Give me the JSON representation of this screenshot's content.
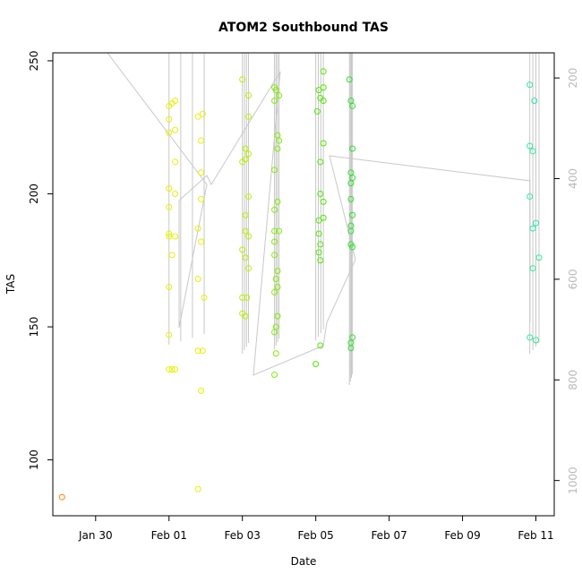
{
  "chart_data": {
    "type": "scatter",
    "title": "ATOM2 Southbound TAS",
    "xlabel": "Date",
    "ylabel": "TAS",
    "xlim": [
      "2025-01-28T20:00",
      "2025-02-11T12:00"
    ],
    "ylim": [
      79,
      253
    ],
    "x_ticks": [
      "Jan 30",
      "Feb 01",
      "Feb 03",
      "Feb 05",
      "Feb 07",
      "Feb 09",
      "Feb 11"
    ],
    "y_ticks": [
      100,
      150,
      200,
      250
    ],
    "secondary_axis": {
      "side": "right",
      "ticks": [
        200,
        400,
        600,
        800,
        1000
      ],
      "ylim": [
        1070,
        150
      ],
      "label_color": "#b8b8b8"
    },
    "marker": "open-circle",
    "grid": false,
    "series": [
      {
        "color": "#ff8000",
        "points": [
          [
            "2025-01-29T02:00",
            86
          ]
        ]
      },
      {
        "color": "#e8f000",
        "points": [
          [
            "2025-02-01T00:00",
            134
          ],
          [
            "2025-02-01T02:00",
            134
          ],
          [
            "2025-02-01T04:00",
            134
          ],
          [
            "2025-02-01T00:00",
            147
          ],
          [
            "2025-02-01T00:00",
            165
          ],
          [
            "2025-02-01T02:00",
            177
          ],
          [
            "2025-02-01T00:00",
            184
          ],
          [
            "2025-02-01T04:00",
            184
          ],
          [
            "2025-02-01T00:00",
            185
          ],
          [
            "2025-02-01T00:00",
            195
          ],
          [
            "2025-02-01T04:00",
            200
          ],
          [
            "2025-02-01T00:00",
            202
          ],
          [
            "2025-02-01T04:00",
            212
          ],
          [
            "2025-02-01T00:00",
            223
          ],
          [
            "2025-02-01T04:00",
            224
          ],
          [
            "2025-02-01T00:00",
            228
          ],
          [
            "2025-02-01T00:00",
            233
          ],
          [
            "2025-02-01T02:00",
            234
          ],
          [
            "2025-02-01T04:00",
            235
          ],
          [
            "2025-02-01T19:00",
            89
          ],
          [
            "2025-02-01T21:00",
            126
          ],
          [
            "2025-02-01T19:00",
            141
          ],
          [
            "2025-02-01T22:00",
            141
          ],
          [
            "2025-02-01T23:00",
            161
          ],
          [
            "2025-02-01T19:00",
            168
          ],
          [
            "2025-02-01T21:00",
            182
          ],
          [
            "2025-02-01T19:00",
            187
          ],
          [
            "2025-02-01T21:00",
            198
          ],
          [
            "2025-02-01T21:00",
            208
          ],
          [
            "2025-02-01T21:00",
            220
          ],
          [
            "2025-02-01T19:00",
            229
          ],
          [
            "2025-02-01T22:00",
            230
          ]
        ]
      },
      {
        "color": "#b8f000",
        "points": [
          [
            "2025-02-03T00:00",
            155
          ],
          [
            "2025-02-03T02:00",
            154
          ],
          [
            "2025-02-03T00:00",
            161
          ],
          [
            "2025-02-03T03:00",
            161
          ],
          [
            "2025-02-03T04:00",
            172
          ],
          [
            "2025-02-03T02:00",
            176
          ],
          [
            "2025-02-03T00:00",
            179
          ],
          [
            "2025-02-03T04:00",
            184
          ],
          [
            "2025-02-03T02:00",
            186
          ],
          [
            "2025-02-03T02:00",
            192
          ],
          [
            "2025-02-03T04:00",
            199
          ],
          [
            "2025-02-03T00:00",
            212
          ],
          [
            "2025-02-03T02:00",
            213
          ],
          [
            "2025-02-03T04:00",
            215
          ],
          [
            "2025-02-03T02:00",
            217
          ],
          [
            "2025-02-03T04:00",
            229
          ],
          [
            "2025-02-03T04:00",
            237
          ],
          [
            "2025-02-03T00:00",
            243
          ]
        ]
      },
      {
        "color": "#80ee00",
        "points": [
          [
            "2025-02-03T21:00",
            132
          ],
          [
            "2025-02-03T22:00",
            140
          ],
          [
            "2025-02-03T21:00",
            148
          ],
          [
            "2025-02-03T22:00",
            150
          ],
          [
            "2025-02-03T23:00",
            154
          ],
          [
            "2025-02-03T21:00",
            163
          ],
          [
            "2025-02-03T23:00",
            165
          ],
          [
            "2025-02-03T22:00",
            168
          ],
          [
            "2025-02-03T23:00",
            171
          ],
          [
            "2025-02-03T21:00",
            177
          ],
          [
            "2025-02-03T21:00",
            182
          ],
          [
            "2025-02-03T21:00",
            186
          ],
          [
            "2025-02-04T00:00",
            186
          ],
          [
            "2025-02-03T21:00",
            194
          ],
          [
            "2025-02-03T23:00",
            197
          ],
          [
            "2025-02-03T21:00",
            209
          ],
          [
            "2025-02-03T23:00",
            217
          ],
          [
            "2025-02-04T00:00",
            220
          ],
          [
            "2025-02-03T23:00",
            222
          ],
          [
            "2025-02-03T21:00",
            235
          ],
          [
            "2025-02-04T00:00",
            237
          ],
          [
            "2025-02-03T22:00",
            239
          ],
          [
            "2025-02-03T21:00",
            240
          ]
        ]
      },
      {
        "color": "#50e800",
        "points": [
          [
            "2025-02-05T00:00",
            136
          ],
          [
            "2025-02-05T03:00",
            143
          ],
          [
            "2025-02-05T03:00",
            175
          ],
          [
            "2025-02-05T02:00",
            178
          ],
          [
            "2025-02-05T03:00",
            181
          ],
          [
            "2025-02-05T02:00",
            185
          ],
          [
            "2025-02-05T02:00",
            190
          ],
          [
            "2025-02-05T05:00",
            191
          ],
          [
            "2025-02-05T05:00",
            197
          ],
          [
            "2025-02-05T03:00",
            200
          ],
          [
            "2025-02-05T03:00",
            212
          ],
          [
            "2025-02-05T05:00",
            219
          ],
          [
            "2025-02-05T01:00",
            231
          ],
          [
            "2025-02-05T05:00",
            235
          ],
          [
            "2025-02-05T03:00",
            236
          ],
          [
            "2025-02-05T02:00",
            239
          ],
          [
            "2025-02-05T05:00",
            240
          ],
          [
            "2025-02-05T05:00",
            246
          ]
        ]
      },
      {
        "color": "#30e030",
        "points": [
          [
            "2025-02-05T23:00",
            142
          ],
          [
            "2025-02-05T23:00",
            144
          ],
          [
            "2025-02-06T00:00",
            146
          ],
          [
            "2025-02-06T00:00",
            180
          ],
          [
            "2025-02-05T23:00",
            181
          ],
          [
            "2025-02-05T23:00",
            186
          ],
          [
            "2025-02-05T23:00",
            188
          ],
          [
            "2025-02-06T00:00",
            192
          ],
          [
            "2025-02-05T23:00",
            198
          ],
          [
            "2025-02-05T23:00",
            204
          ],
          [
            "2025-02-06T00:00",
            206
          ],
          [
            "2025-02-05T23:00",
            208
          ],
          [
            "2025-02-06T00:00",
            217
          ],
          [
            "2025-02-06T00:00",
            233
          ],
          [
            "2025-02-05T23:00",
            235
          ],
          [
            "2025-02-05T22:00",
            243
          ]
        ]
      },
      {
        "color": "#30e8a0",
        "points": [
          [
            "2025-02-10T20:00",
            146
          ],
          [
            "2025-02-11T00:00",
            145
          ],
          [
            "2025-02-11T02:00",
            176
          ],
          [
            "2025-02-10T22:00",
            172
          ],
          [
            "2025-02-10T22:00",
            187
          ],
          [
            "2025-02-11T00:00",
            189
          ],
          [
            "2025-02-10T20:00",
            199
          ],
          [
            "2025-02-10T22:00",
            216
          ],
          [
            "2025-02-10T20:00",
            218
          ],
          [
            "2025-02-10T23:00",
            235
          ],
          [
            "2025-02-10T20:00",
            241
          ]
        ]
      }
    ]
  }
}
